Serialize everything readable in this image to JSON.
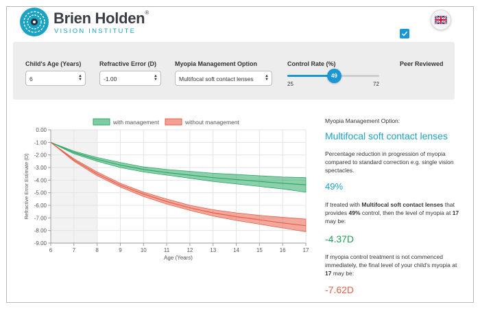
{
  "brand": {
    "name": "Brien Holden",
    "reg_mark": "®",
    "subtitle": "VISION INSTITUTE"
  },
  "language_flag": "uk-flag-icon",
  "controls": {
    "age": {
      "label": "Child's Age (Years)",
      "value": "6"
    },
    "refractive_error": {
      "label": "Refractive Error (D)",
      "value": "-1.00"
    },
    "management_option": {
      "label": "Myopia Management Option",
      "value": "Multifocal soft contact lenses"
    },
    "control_rate": {
      "label": "Control Rate (%)",
      "value": "49",
      "min": "25",
      "max": "72",
      "fraction": 0.51
    },
    "peer_reviewed": {
      "label": "Peer Reviewed",
      "checked": true
    }
  },
  "chart_data": {
    "type": "area",
    "xlabel": "Age (Years)",
    "ylabel": "Refractive Error Estimate (D)",
    "xlim": [
      6,
      17
    ],
    "ylim": [
      -9,
      0
    ],
    "x_ticks": [
      "6",
      "7",
      "8",
      "9",
      "10",
      "11",
      "12",
      "13",
      "14",
      "15",
      "16",
      "17"
    ],
    "y_ticks": [
      "0.00",
      "-1.00",
      "-2.00",
      "-3.00",
      "-4.00",
      "-5.00",
      "-6.00",
      "-7.00",
      "-8.00",
      "-9.00"
    ],
    "shaded_x_range": [
      6,
      8
    ],
    "legend": {
      "position": "top",
      "items": [
        "with management",
        "without management"
      ]
    },
    "x": [
      6,
      7,
      8,
      9,
      10,
      11,
      12,
      13,
      14,
      15,
      16,
      17
    ],
    "series": [
      {
        "name": "with management",
        "color": "#2ca866",
        "mean": [
          -1.0,
          -1.8,
          -2.35,
          -2.8,
          -3.15,
          -3.4,
          -3.6,
          -3.8,
          -3.95,
          -4.1,
          -4.25,
          -4.37
        ],
        "upper": [
          -1.0,
          -1.7,
          -2.2,
          -2.6,
          -2.95,
          -3.15,
          -3.3,
          -3.45,
          -3.55,
          -3.65,
          -3.75,
          -3.8
        ],
        "lower": [
          -1.0,
          -1.9,
          -2.5,
          -3.0,
          -3.35,
          -3.6,
          -3.85,
          -4.1,
          -4.3,
          -4.5,
          -4.7,
          -4.95
        ]
      },
      {
        "name": "without management",
        "color": "#e8604a",
        "mean": [
          -1.0,
          -2.4,
          -3.5,
          -4.4,
          -5.1,
          -5.7,
          -6.2,
          -6.6,
          -6.9,
          -7.15,
          -7.4,
          -7.62
        ],
        "upper": [
          -1.0,
          -2.3,
          -3.35,
          -4.25,
          -4.95,
          -5.5,
          -6.0,
          -6.35,
          -6.6,
          -6.8,
          -6.95,
          -7.1
        ],
        "lower": [
          -1.0,
          -2.5,
          -3.65,
          -4.55,
          -5.3,
          -5.9,
          -6.4,
          -6.85,
          -7.2,
          -7.5,
          -7.8,
          -8.1
        ]
      }
    ]
  },
  "info": {
    "option_heading": "Myopia Management Option:",
    "option_name": "Multifocal soft contact lenses",
    "reduction_text": "Percentage reduction in progression of myopia compared to standard correction e.g. single vision spectacles.",
    "reduction_value": "49%",
    "treated_pre": "If treated with ",
    "treated_option": "Multifocal soft contact lenses",
    "treated_mid": " that provides ",
    "treated_pct": "49%",
    "treated_mid2": " control, then the level of myopia at ",
    "treated_age": "17",
    "treated_post": " may be:",
    "treated_value": "-4.37D",
    "untreated_pre": "If myopia control treatment is not commenced immediately, the final level of your child's myopia at ",
    "untreated_age": "17",
    "untreated_post": " may be:",
    "untreated_value": "-7.62D"
  },
  "colors": {
    "accent_blue": "#1a97d4",
    "brand_teal": "#1aa3c2",
    "green": "#1e9e58",
    "red": "#e8604a"
  }
}
